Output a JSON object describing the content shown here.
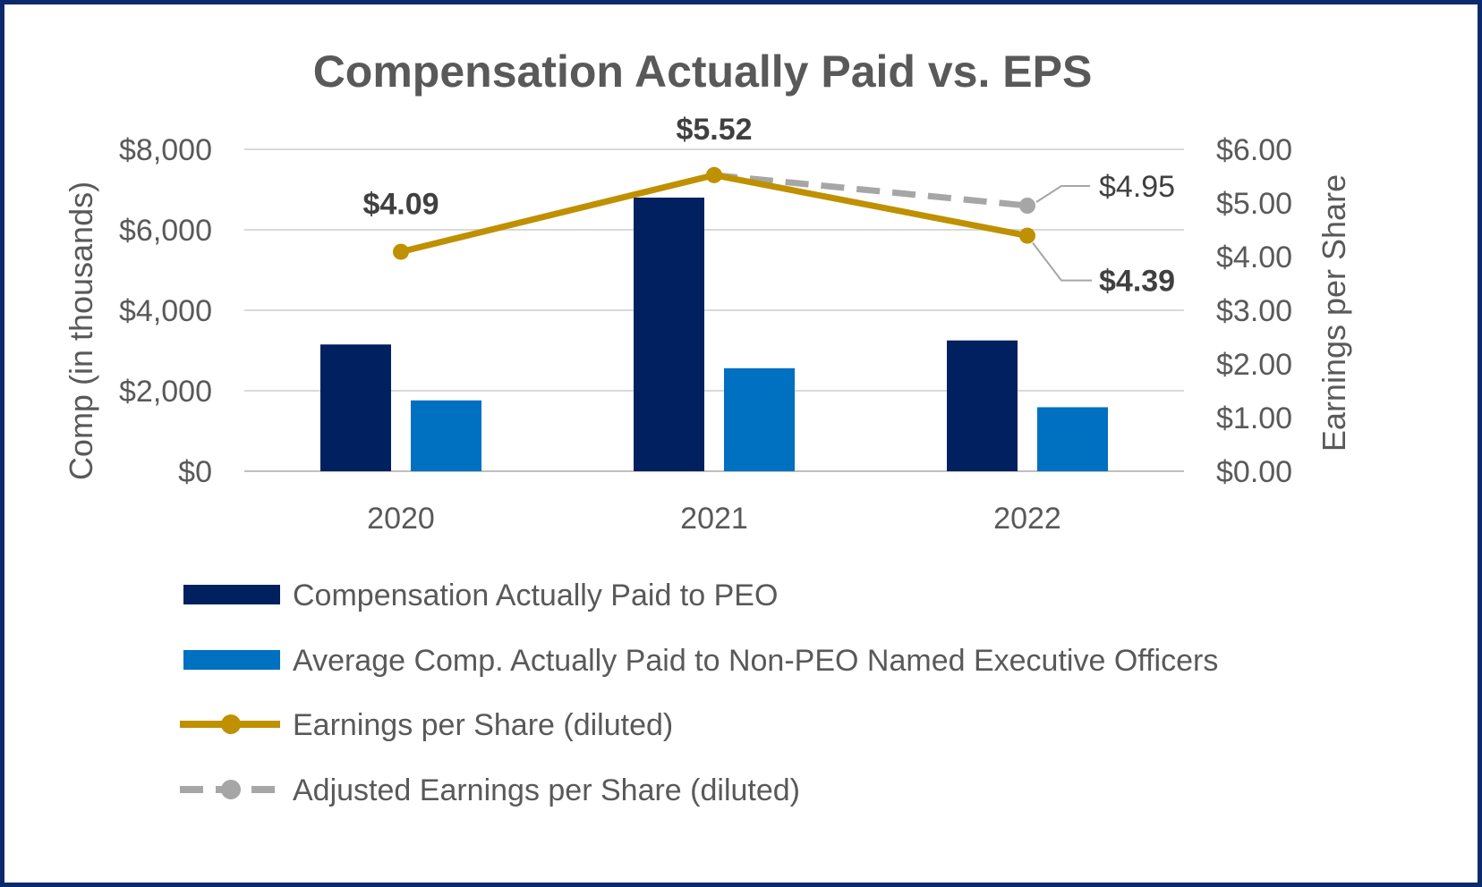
{
  "chart_data": {
    "type": "bar",
    "title": "Compensation Actually Paid vs. EPS",
    "categories": [
      "2020",
      "2021",
      "2022"
    ],
    "ylabel": "Comp (in thousands)",
    "ylabel_right": "Earnings per Share",
    "ylim": [
      0,
      8000
    ],
    "yticks": [
      "$0",
      "$2,000",
      "$4,000",
      "$6,000",
      "$8,000"
    ],
    "ylim_right": [
      0,
      6
    ],
    "yticks_right": [
      "$0.00",
      "$1.00",
      "$2.00",
      "$3.00",
      "$4.00",
      "$5.00",
      "$6.00"
    ],
    "grid": true,
    "legend_position": "bottom",
    "series": [
      {
        "name": "Compensation Actually Paid to PEO",
        "kind": "bar",
        "axis": "left",
        "color": "#002060",
        "values": [
          3150,
          6800,
          3250
        ]
      },
      {
        "name": "Average Comp. Actually Paid to Non-PEO Named Executive Officers",
        "kind": "bar",
        "axis": "left",
        "color": "#0070c0",
        "values": [
          1760,
          2560,
          1590
        ]
      },
      {
        "name": "Earnings per Share (diluted)",
        "kind": "line",
        "axis": "right",
        "color": "#bf9000",
        "values": [
          4.09,
          5.52,
          4.39
        ],
        "labels": [
          "$4.09",
          "$5.52",
          "$4.39"
        ]
      },
      {
        "name": "Adjusted Earnings per Share (diluted)",
        "kind": "line-dashed",
        "axis": "right",
        "color": "#a6a6a6",
        "values": [
          null,
          5.52,
          4.95
        ],
        "labels": [
          "",
          "",
          "$4.95"
        ]
      }
    ]
  }
}
